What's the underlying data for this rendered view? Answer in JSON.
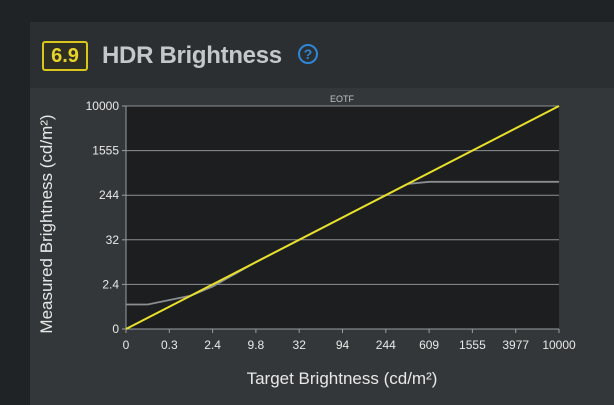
{
  "header": {
    "score": "6.9",
    "title": "HDR Brightness",
    "help_icon": "question-circle-icon",
    "accent_color": "#d9c71c",
    "help_color": "#2f86d6"
  },
  "chart_data": {
    "type": "line",
    "title": "EOTF",
    "xlabel": "Target Brightness (cd/m²)",
    "ylabel": "Measured Brightness (cd/m²)",
    "x_ticks": [
      "0",
      "0.3",
      "2.4",
      "9.8",
      "32",
      "94",
      "244",
      "609",
      "1555",
      "3977",
      "10000"
    ],
    "y_ticks": [
      "0",
      "2.4",
      "32",
      "244",
      "1555",
      "10000"
    ],
    "xlim": [
      0,
      10
    ],
    "ylim": [
      0,
      5
    ],
    "grid": true,
    "series": [
      {
        "color": "#e8e02a",
        "x": [
          0,
          10
        ],
        "y": [
          0,
          5
        ]
      },
      {
        "color": "#8a8e90",
        "x": [
          0,
          0.5,
          1.5,
          2.0,
          3,
          4,
          5,
          6.1,
          6.5,
          7.0,
          8,
          9,
          10
        ],
        "y": [
          0.55,
          0.55,
          0.75,
          0.95,
          1.5,
          2.0,
          2.5,
          3.05,
          3.25,
          3.3,
          3.3,
          3.3,
          3.3
        ]
      }
    ]
  }
}
